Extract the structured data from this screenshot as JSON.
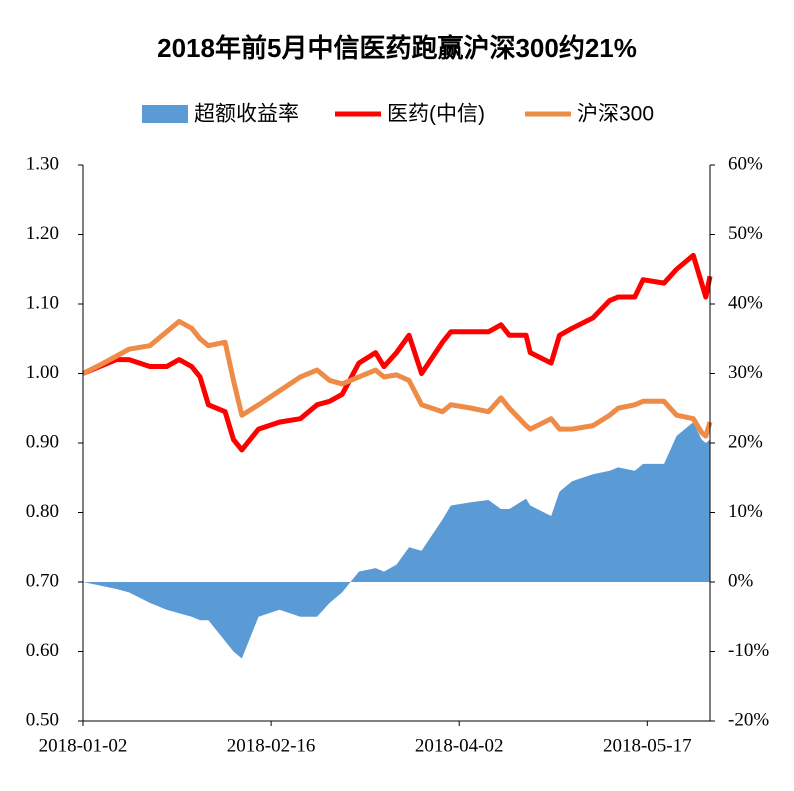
{
  "chart_data": {
    "type": "line",
    "title": "2018年前5月中信医药跑赢沪深300约21%",
    "x": [
      "2018-01-02",
      "2018-01-06",
      "2018-01-10",
      "2018-01-13",
      "2018-01-18",
      "2018-01-22",
      "2018-01-25",
      "2018-01-28",
      "2018-01-30",
      "2018-02-01",
      "2018-02-05",
      "2018-02-07",
      "2018-02-09",
      "2018-02-13",
      "2018-02-18",
      "2018-02-23",
      "2018-02-27",
      "2018-03-02",
      "2018-03-05",
      "2018-03-09",
      "2018-03-13",
      "2018-03-15",
      "2018-03-18",
      "2018-03-21",
      "2018-03-24",
      "2018-03-29",
      "2018-03-31",
      "2018-04-05",
      "2018-04-09",
      "2018-04-12",
      "2018-04-14",
      "2018-04-18",
      "2018-04-19",
      "2018-04-24",
      "2018-04-26",
      "2018-04-29",
      "2018-05-04",
      "2018-05-08",
      "2018-05-10",
      "2018-05-14",
      "2018-05-16",
      "2018-05-21",
      "2018-05-24",
      "2018-05-28",
      "2018-05-30",
      "2018-05-31",
      "2018-06-01"
    ],
    "series": [
      {
        "name": "超额收益率",
        "type": "area",
        "axis": "y2",
        "color": "#5b9bd5",
        "values": [
          0,
          -0.5,
          -1,
          -1.5,
          -3,
          -4,
          -4.5,
          -5,
          -5.5,
          -5.5,
          -8.5,
          -10,
          -11,
          -5,
          -4,
          -5,
          -5,
          -3,
          -1.5,
          1.5,
          2,
          1.5,
          2.5,
          5,
          4.5,
          9,
          11,
          11.5,
          11.8,
          10.5,
          10.5,
          12,
          11,
          9.5,
          13,
          14.5,
          15.5,
          16,
          16.5,
          16,
          17,
          17,
          21,
          23,
          20.5,
          20,
          20.5
        ]
      },
      {
        "name": "医药(中信)",
        "type": "line",
        "color": "#ff0000",
        "values": [
          1.0,
          1.01,
          1.02,
          1.02,
          1.01,
          1.01,
          1.02,
          1.01,
          0.995,
          0.955,
          0.945,
          0.905,
          0.89,
          0.92,
          0.93,
          0.935,
          0.955,
          0.96,
          0.97,
          1.015,
          1.03,
          1.01,
          1.03,
          1.055,
          1.0,
          1.045,
          1.06,
          1.06,
          1.06,
          1.07,
          1.055,
          1.055,
          1.03,
          1.015,
          1.055,
          1.065,
          1.08,
          1.105,
          1.11,
          1.11,
          1.135,
          1.13,
          1.15,
          1.17,
          1.13,
          1.11,
          1.14
        ]
      },
      {
        "name": "沪深300",
        "type": "line",
        "color": "#ed8b47",
        "values": [
          1.0,
          1.012,
          1.025,
          1.035,
          1.04,
          1.06,
          1.075,
          1.065,
          1.05,
          1.04,
          1.045,
          0.99,
          0.94,
          0.955,
          0.975,
          0.995,
          1.005,
          0.99,
          0.985,
          0.995,
          1.005,
          0.995,
          0.998,
          0.99,
          0.955,
          0.945,
          0.955,
          0.95,
          0.945,
          0.965,
          0.95,
          0.925,
          0.92,
          0.935,
          0.92,
          0.92,
          0.925,
          0.94,
          0.95,
          0.955,
          0.96,
          0.96,
          0.94,
          0.935,
          0.915,
          0.91,
          0.93
        ]
      }
    ],
    "xlim": [
      "2018-01-02",
      "2018-06-01"
    ],
    "xticks": [
      "2018-01-02",
      "2018-02-16",
      "2018-04-02",
      "2018-05-17"
    ],
    "ylim": [
      0.5,
      1.3
    ],
    "yticks": [
      {
        "value": 0.5,
        "label": "0.50"
      },
      {
        "value": 0.6,
        "label": "0.60"
      },
      {
        "value": 0.7,
        "label": "0.70"
      },
      {
        "value": 0.8,
        "label": "0.80"
      },
      {
        "value": 0.9,
        "label": "0.90"
      },
      {
        "value": 1.0,
        "label": "1.00"
      },
      {
        "value": 1.1,
        "label": "1.10"
      },
      {
        "value": 1.2,
        "label": "1.20"
      },
      {
        "value": 1.3,
        "label": "1.30"
      }
    ],
    "y2lim": [
      -20,
      60
    ],
    "y2ticks": [
      {
        "value": -20,
        "label": "-20%"
      },
      {
        "value": -10,
        "label": "-10%"
      },
      {
        "value": 0,
        "label": "0%"
      },
      {
        "value": 10,
        "label": "10%"
      },
      {
        "value": 20,
        "label": "20%"
      },
      {
        "value": 30,
        "label": "30%"
      },
      {
        "value": 40,
        "label": "40%"
      },
      {
        "value": 50,
        "label": "50%"
      },
      {
        "value": 60,
        "label": "60%"
      }
    ],
    "grid": false,
    "legend": "top"
  }
}
